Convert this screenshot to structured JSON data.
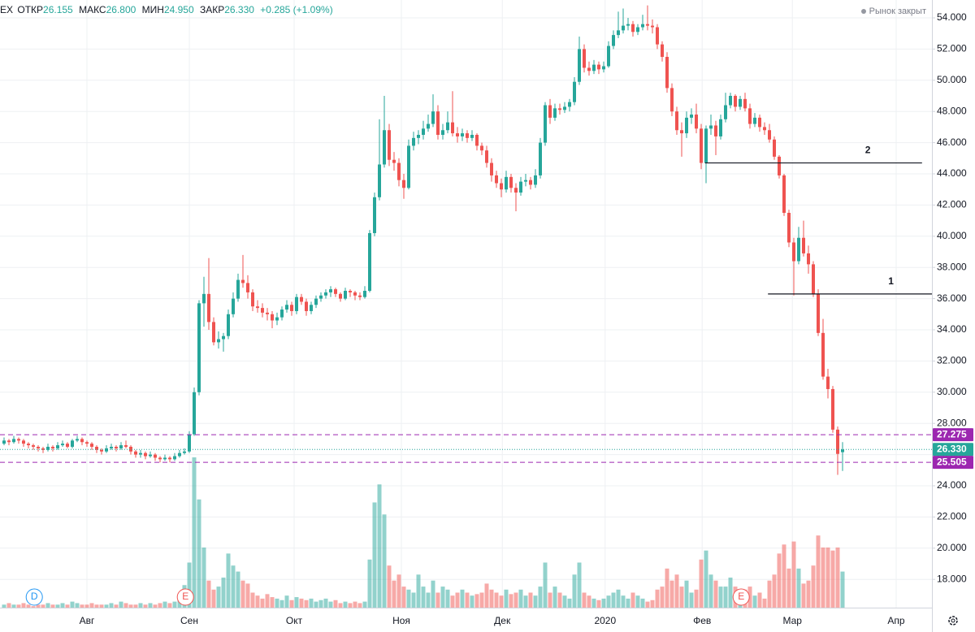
{
  "header": {
    "symbol": "EX",
    "open_label": "ОТКР",
    "open": "26.155",
    "high_label": "МАКС",
    "high": "26.800",
    "low_label": "МИН",
    "low": "24.950",
    "close_label": "ЗАКР",
    "close": "26.330",
    "change": "+0.285 (+1.09%)",
    "status": "Рынок закрыт"
  },
  "chart_data": {
    "type": "candlestick",
    "up_color": "#26a69a",
    "down_color": "#ef5350",
    "volume_up_color": "rgba(38,166,154,0.5)",
    "volume_down_color": "rgba(239,83,80,0.5)",
    "grid": true,
    "xlim": [
      -0.833,
      190.333
    ],
    "xticks": [
      {
        "value": 17,
        "label": "Авг"
      },
      {
        "value": 38,
        "label": "Сен"
      },
      {
        "value": 59.5,
        "label": "Окт"
      },
      {
        "value": 81.5,
        "label": "Ноя"
      },
      {
        "value": 102.2,
        "label": "Дек"
      },
      {
        "value": 123.3,
        "label": "2020"
      },
      {
        "value": 143.2,
        "label": "Фев"
      },
      {
        "value": 161.7,
        "label": "Мар"
      },
      {
        "value": 183,
        "label": "Апр"
      }
    ],
    "ylim": [
      14.625,
      55.146
    ],
    "yticks": [
      {
        "value": 18,
        "label": "18.000"
      },
      {
        "value": 20,
        "label": "20.000"
      },
      {
        "value": 22,
        "label": "22.000"
      },
      {
        "value": 24,
        "label": "24.000"
      },
      {
        "value": 26,
        "label": "26.000"
      },
      {
        "value": 28,
        "label": "28.000"
      },
      {
        "value": 30,
        "label": "30.000"
      },
      {
        "value": 32,
        "label": "32.000"
      },
      {
        "value": 34,
        "label": "34.000"
      },
      {
        "value": 36,
        "label": "36.000"
      },
      {
        "value": 38,
        "label": "38.000"
      },
      {
        "value": 40,
        "label": "40.000"
      },
      {
        "value": 42,
        "label": "42.000"
      },
      {
        "value": 44,
        "label": "44.000"
      },
      {
        "value": 46,
        "label": "46.000"
      },
      {
        "value": 48,
        "label": "48.000"
      },
      {
        "value": 50,
        "label": "50.000"
      },
      {
        "value": 52,
        "label": "52.000"
      },
      {
        "value": 54,
        "label": "54.000"
      }
    ],
    "levels": [
      {
        "value": 27.275,
        "label": "27.275",
        "color": "#9c27b0",
        "style": "dashed"
      },
      {
        "value": 26.33,
        "label": "26.330",
        "color": "#26a69a",
        "style": "dotted"
      },
      {
        "value": 25.505,
        "label": "25.505",
        "color": "#9c27b0",
        "style": "dashed"
      }
    ],
    "drawings": [
      {
        "label": "2",
        "value": 44.7,
        "x": [
          143.8,
          188.3
        ]
      },
      {
        "label": "1",
        "value": 36.3,
        "x": [
          156.7,
          190.333
        ]
      }
    ],
    "events": [
      {
        "label": "D",
        "x": 6.2,
        "color": "#2196f3"
      },
      {
        "label": "E",
        "x": 37.2,
        "color": "#ef5350"
      },
      {
        "label": "E",
        "x": 151.2,
        "color": "#ef5350"
      }
    ],
    "candles": [
      [
        26.7,
        27.1,
        26.6,
        26.9
      ],
      [
        26.9,
        27.0,
        26.6,
        26.8
      ],
      [
        26.8,
        27.2,
        26.7,
        27.0
      ],
      [
        27.0,
        27.1,
        26.7,
        26.9
      ],
      [
        26.9,
        27.0,
        26.5,
        26.7
      ],
      [
        26.7,
        26.8,
        26.4,
        26.6
      ],
      [
        26.6,
        26.7,
        26.3,
        26.5
      ],
      [
        26.5,
        26.6,
        26.2,
        26.4
      ],
      [
        26.4,
        26.5,
        26.1,
        26.3
      ],
      [
        26.3,
        26.7,
        26.2,
        26.5
      ],
      [
        26.5,
        26.6,
        26.2,
        26.4
      ],
      [
        26.4,
        26.8,
        26.3,
        26.6
      ],
      [
        26.6,
        26.9,
        26.5,
        26.7
      ],
      [
        26.7,
        26.8,
        26.4,
        26.5
      ],
      [
        26.5,
        27.0,
        26.4,
        26.9
      ],
      [
        26.9,
        27.2,
        26.8,
        27.0
      ],
      [
        27.0,
        27.1,
        26.6,
        26.8
      ],
      [
        26.8,
        26.9,
        26.5,
        26.7
      ],
      [
        26.7,
        26.8,
        26.3,
        26.5
      ],
      [
        26.5,
        26.6,
        26.1,
        26.3
      ],
      [
        26.3,
        26.4,
        26.0,
        26.2
      ],
      [
        26.2,
        26.6,
        26.1,
        26.4
      ],
      [
        26.4,
        26.7,
        26.3,
        26.5
      ],
      [
        26.5,
        26.6,
        26.2,
        26.4
      ],
      [
        26.4,
        26.8,
        26.3,
        26.6
      ],
      [
        26.6,
        26.9,
        26.4,
        26.5
      ],
      [
        26.5,
        26.6,
        26.0,
        26.2
      ],
      [
        26.2,
        26.3,
        25.8,
        26.0
      ],
      [
        26.0,
        26.3,
        25.8,
        26.1
      ],
      [
        26.1,
        26.2,
        25.7,
        25.9
      ],
      [
        25.9,
        26.2,
        25.8,
        26.0
      ],
      [
        26.0,
        26.1,
        25.6,
        25.8
      ],
      [
        25.8,
        25.9,
        25.5,
        25.7
      ],
      [
        25.7,
        26.0,
        25.6,
        25.8
      ],
      [
        25.8,
        25.9,
        25.5,
        25.7
      ],
      [
        25.7,
        26.1,
        25.6,
        25.9
      ],
      [
        25.9,
        26.3,
        25.8,
        26.1
      ],
      [
        26.1,
        26.4,
        26.0,
        26.2
      ],
      [
        26.2,
        27.5,
        26.1,
        27.3
      ],
      [
        27.3,
        30.3,
        27.2,
        30.0
      ],
      [
        30.0,
        35.9,
        29.8,
        35.7
      ],
      [
        35.7,
        37.4,
        34.2,
        36.3
      ],
      [
        36.3,
        38.6,
        34.0,
        34.5
      ],
      [
        34.5,
        34.8,
        33.0,
        33.2
      ],
      [
        33.2,
        33.9,
        32.8,
        33.4
      ],
      [
        33.4,
        33.8,
        32.6,
        33.6
      ],
      [
        33.6,
        35.3,
        33.4,
        35.0
      ],
      [
        35.0,
        36.4,
        34.8,
        36.0
      ],
      [
        36.0,
        37.6,
        35.8,
        37.2
      ],
      [
        37.2,
        38.8,
        36.7,
        37.0
      ],
      [
        37.0,
        37.5,
        36.0,
        36.4
      ],
      [
        36.4,
        36.6,
        35.2,
        35.5
      ],
      [
        35.5,
        35.9,
        35.1,
        35.4
      ],
      [
        35.4,
        35.7,
        34.8,
        35.1
      ],
      [
        35.1,
        35.4,
        34.6,
        35.0
      ],
      [
        35.0,
        35.2,
        34.1,
        34.6
      ],
      [
        34.6,
        35.1,
        34.3,
        34.8
      ],
      [
        34.8,
        35.5,
        34.6,
        35.3
      ],
      [
        35.3,
        35.9,
        35.1,
        35.6
      ],
      [
        35.6,
        35.8,
        34.9,
        35.2
      ],
      [
        35.2,
        36.3,
        35.0,
        36.1
      ],
      [
        36.1,
        36.3,
        35.6,
        35.8
      ],
      [
        35.8,
        36.0,
        34.9,
        35.2
      ],
      [
        35.2,
        35.8,
        35.0,
        35.6
      ],
      [
        35.6,
        36.2,
        35.4,
        36.0
      ],
      [
        36.0,
        36.4,
        35.8,
        36.2
      ],
      [
        36.2,
        36.6,
        36.0,
        36.4
      ],
      [
        36.4,
        36.8,
        36.1,
        36.6
      ],
      [
        36.6,
        36.7,
        36.1,
        36.3
      ],
      [
        36.3,
        36.4,
        35.8,
        36.0
      ],
      [
        36.0,
        36.7,
        35.9,
        36.5
      ],
      [
        36.5,
        36.6,
        36.1,
        36.4
      ],
      [
        36.4,
        36.5,
        35.9,
        36.2
      ],
      [
        36.2,
        36.4,
        35.9,
        36.1
      ],
      [
        36.1,
        36.8,
        36.0,
        36.5
      ],
      [
        36.5,
        40.4,
        36.4,
        40.2
      ],
      [
        40.2,
        42.8,
        40.0,
        42.5
      ],
      [
        42.5,
        47.5,
        42.3,
        44.6
      ],
      [
        44.6,
        49.0,
        44.4,
        46.8
      ],
      [
        46.8,
        47.2,
        44.5,
        44.9
      ],
      [
        44.9,
        45.4,
        44.2,
        44.7
      ],
      [
        44.7,
        45.0,
        43.2,
        43.6
      ],
      [
        43.6,
        44.0,
        42.4,
        43.1
      ],
      [
        43.1,
        46.2,
        43.0,
        45.8
      ],
      [
        45.8,
        46.7,
        45.5,
        46.3
      ],
      [
        46.3,
        46.8,
        45.9,
        46.5
      ],
      [
        46.5,
        47.4,
        46.2,
        46.9
      ],
      [
        46.9,
        47.8,
        46.7,
        47.2
      ],
      [
        47.2,
        49.1,
        47.0,
        48.0
      ],
      [
        48.0,
        48.4,
        46.2,
        46.5
      ],
      [
        46.5,
        47.2,
        46.2,
        46.8
      ],
      [
        46.8,
        48.0,
        46.6,
        47.3
      ],
      [
        47.3,
        49.3,
        46.4,
        46.6
      ],
      [
        46.6,
        47.0,
        46.0,
        46.4
      ],
      [
        46.4,
        46.9,
        46.1,
        46.6
      ],
      [
        46.6,
        46.8,
        46.0,
        46.3
      ],
      [
        46.3,
        46.8,
        46.1,
        46.5
      ],
      [
        46.5,
        46.6,
        45.5,
        45.8
      ],
      [
        45.8,
        46.0,
        45.2,
        45.5
      ],
      [
        45.5,
        45.8,
        44.4,
        44.7
      ],
      [
        44.7,
        45.0,
        43.5,
        43.9
      ],
      [
        43.9,
        44.2,
        43.1,
        43.4
      ],
      [
        43.4,
        43.7,
        42.5,
        43.0
      ],
      [
        43.0,
        44.2,
        42.8,
        43.8
      ],
      [
        43.8,
        44.0,
        42.8,
        43.1
      ],
      [
        43.1,
        43.4,
        41.6,
        42.8
      ],
      [
        42.8,
        43.8,
        42.6,
        43.5
      ],
      [
        43.5,
        44.0,
        43.2,
        43.6
      ],
      [
        43.6,
        43.8,
        43.0,
        43.3
      ],
      [
        43.3,
        44.3,
        43.1,
        43.9
      ],
      [
        43.9,
        46.3,
        43.7,
        46.0
      ],
      [
        46.0,
        48.6,
        45.8,
        48.4
      ],
      [
        48.4,
        48.8,
        47.2,
        47.6
      ],
      [
        47.6,
        48.5,
        47.4,
        48.2
      ],
      [
        48.2,
        48.5,
        47.8,
        48.1
      ],
      [
        48.1,
        48.6,
        47.9,
        48.3
      ],
      [
        48.3,
        48.8,
        48.0,
        48.6
      ],
      [
        48.6,
        50.2,
        48.4,
        49.9
      ],
      [
        49.9,
        52.8,
        49.7,
        52.0
      ],
      [
        52.0,
        52.3,
        50.5,
        50.8
      ],
      [
        50.8,
        51.2,
        50.3,
        50.6
      ],
      [
        50.6,
        51.3,
        50.4,
        51.0
      ],
      [
        51.0,
        51.2,
        50.4,
        50.7
      ],
      [
        50.7,
        51.2,
        50.5,
        50.9
      ],
      [
        50.9,
        52.5,
        50.8,
        52.2
      ],
      [
        52.2,
        53.2,
        52.0,
        52.9
      ],
      [
        52.9,
        54.4,
        52.7,
        53.2
      ],
      [
        53.2,
        54.6,
        53.0,
        53.5
      ],
      [
        53.5,
        54.0,
        53.2,
        53.6
      ],
      [
        53.6,
        53.8,
        52.8,
        53.1
      ],
      [
        53.1,
        53.6,
        52.9,
        53.4
      ],
      [
        53.4,
        54.2,
        53.2,
        53.6
      ],
      [
        53.6,
        54.8,
        53.2,
        53.5
      ],
      [
        53.5,
        53.9,
        53.0,
        53.4
      ],
      [
        53.4,
        53.6,
        52.0,
        52.3
      ],
      [
        52.3,
        52.5,
        51.2,
        51.5
      ],
      [
        51.5,
        51.8,
        49.2,
        49.5
      ],
      [
        49.5,
        49.8,
        47.7,
        48.0
      ],
      [
        48.0,
        48.3,
        46.5,
        46.8
      ],
      [
        46.8,
        47.3,
        45.1,
        46.6
      ],
      [
        46.6,
        48.0,
        46.3,
        47.6
      ],
      [
        47.6,
        48.2,
        47.2,
        47.8
      ],
      [
        47.8,
        48.5,
        46.6,
        46.9
      ],
      [
        46.9,
        47.2,
        44.3,
        44.7
      ],
      [
        44.7,
        47.1,
        43.4,
        46.9
      ],
      [
        46.9,
        47.8,
        46.5,
        47.1
      ],
      [
        47.1,
        47.4,
        45.2,
        46.4
      ],
      [
        46.4,
        47.8,
        46.2,
        47.5
      ],
      [
        47.5,
        49.2,
        47.3,
        48.4
      ],
      [
        48.4,
        49.2,
        48.2,
        49.0
      ],
      [
        49.0,
        49.1,
        48.0,
        48.3
      ],
      [
        48.3,
        49.0,
        48.1,
        48.8
      ],
      [
        48.8,
        49.2,
        48.0,
        48.2
      ],
      [
        48.2,
        48.5,
        46.9,
        47.2
      ],
      [
        47.2,
        47.9,
        47.0,
        47.6
      ],
      [
        47.6,
        47.8,
        46.7,
        47.0
      ],
      [
        47.0,
        47.3,
        46.5,
        46.8
      ],
      [
        46.8,
        47.2,
        46.0,
        46.2
      ],
      [
        46.2,
        46.4,
        44.9,
        45.1
      ],
      [
        45.1,
        45.2,
        43.7,
        43.9
      ],
      [
        43.9,
        44.0,
        41.3,
        41.5
      ],
      [
        41.5,
        41.7,
        39.3,
        39.6
      ],
      [
        39.6,
        39.9,
        36.2,
        38.4
      ],
      [
        38.4,
        40.6,
        38.2,
        39.9
      ],
      [
        39.9,
        41.0,
        38.7,
        38.9
      ],
      [
        38.9,
        39.4,
        37.6,
        38.2
      ],
      [
        38.2,
        38.4,
        36.1,
        36.3
      ],
      [
        36.3,
        36.6,
        33.6,
        33.8
      ],
      [
        33.8,
        34.7,
        30.8,
        31.0
      ],
      [
        31.0,
        31.5,
        29.6,
        30.2
      ],
      [
        30.2,
        30.4,
        27.4,
        27.6
      ],
      [
        27.6,
        27.8,
        24.7,
        26.045
      ],
      [
        26.155,
        26.8,
        24.95,
        26.33
      ]
    ],
    "volume": [
      2,
      3,
      2,
      2,
      3,
      2,
      1,
      2,
      2,
      3,
      2,
      2,
      3,
      2,
      4,
      3,
      2,
      2,
      3,
      2,
      2,
      2,
      3,
      2,
      4,
      3,
      2,
      2,
      3,
      2,
      3,
      2,
      3,
      4,
      3,
      4,
      8,
      15,
      30,
      100,
      72,
      40,
      18,
      12,
      14,
      20,
      36,
      28,
      24,
      18,
      16,
      10,
      8,
      6,
      9,
      7,
      6,
      5,
      8,
      5,
      7,
      6,
      5,
      6,
      4,
      5,
      6,
      4,
      5,
      3,
      4,
      3,
      4,
      3,
      4,
      32,
      70,
      82,
      62,
      28,
      18,
      22,
      14,
      12,
      10,
      22,
      14,
      10,
      18,
      10,
      14,
      12,
      8,
      10,
      12,
      10,
      8,
      9,
      10,
      16,
      12,
      10,
      8,
      12,
      9,
      10,
      12,
      8,
      10,
      8,
      14,
      30,
      10,
      14,
      10,
      8,
      6,
      22,
      30,
      10,
      8,
      6,
      5,
      6,
      8,
      10,
      12,
      8,
      6,
      10,
      8,
      6,
      4,
      5,
      12,
      14,
      26,
      18,
      22,
      14,
      18,
      10,
      12,
      32,
      38,
      22,
      18,
      14,
      14,
      20,
      14,
      10,
      12,
      14,
      8,
      10,
      6,
      18,
      22,
      36,
      42,
      26,
      44,
      26,
      16,
      18,
      28,
      48,
      40,
      40,
      38,
      40,
      24
    ]
  }
}
